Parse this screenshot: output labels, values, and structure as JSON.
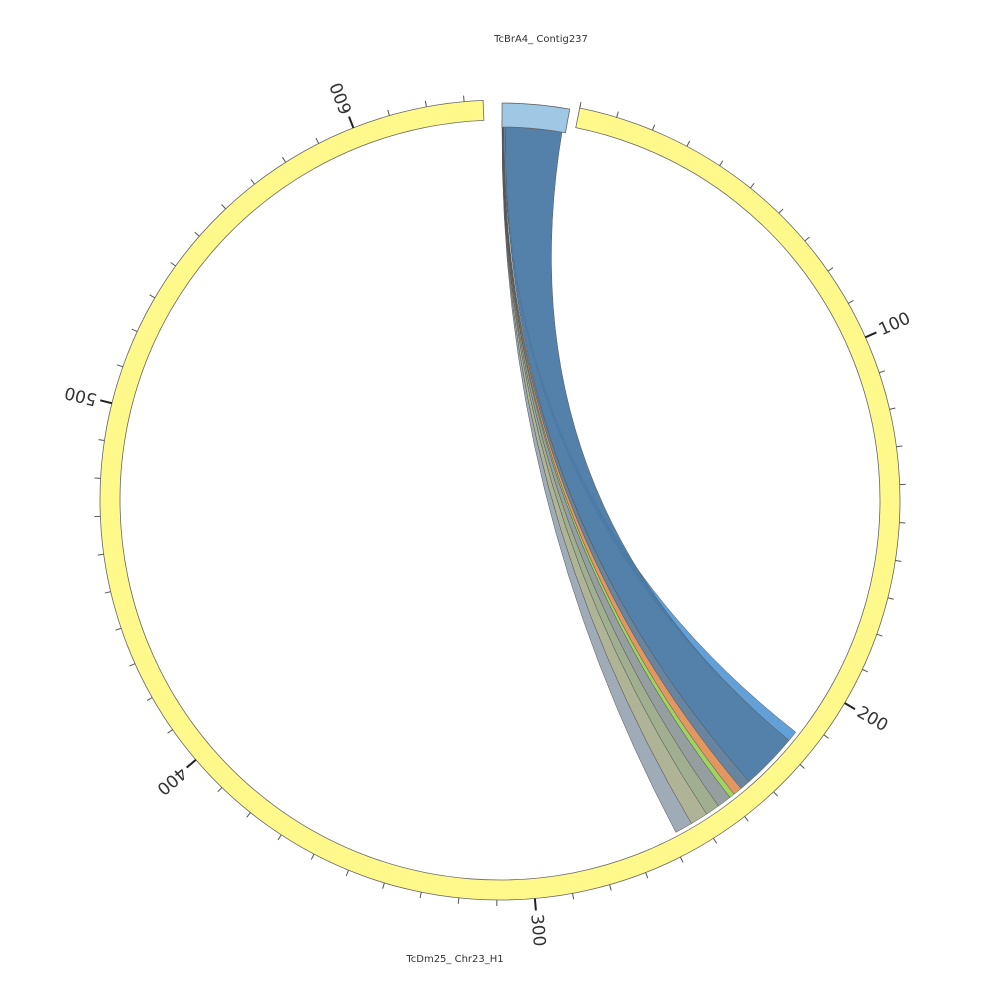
{
  "segments": [
    {
      "name": "TcBrA4_ Contig237",
      "start": 0,
      "end": 18,
      "color": "#9ec8e4"
    },
    {
      "name": "TcDm25_ Chr23_H1",
      "start": 0,
      "end": 635,
      "color": "#fff88a"
    }
  ],
  "major_ticks": [
    100,
    200,
    300,
    400,
    500,
    600
  ],
  "minor_ticks": [
    0,
    10,
    20,
    30,
    40,
    50,
    60,
    70,
    80,
    90,
    110,
    120,
    130,
    140,
    150,
    160,
    170,
    180,
    190,
    210,
    220,
    230,
    240,
    250,
    260,
    270,
    280,
    290,
    310,
    320,
    330,
    340,
    350,
    360,
    370,
    380,
    390,
    410,
    420,
    430,
    440,
    450,
    460,
    470,
    480,
    490,
    510,
    520,
    530,
    540,
    550,
    560,
    570,
    580,
    590,
    610,
    620,
    630
  ],
  "links": [
    {
      "contig": [
        0.6,
        1.0
      ],
      "chr": [
        214,
        217
      ],
      "color": "#5b9bd5"
    },
    {
      "contig": [
        1.0,
        17.0
      ],
      "chr": [
        217,
        233
      ],
      "color": "#4a7aa5"
    },
    {
      "contig": [
        0.45,
        0.6
      ],
      "chr": [
        233,
        236
      ],
      "color": "#5f7e9c"
    },
    {
      "contig": [
        0.35,
        0.45
      ],
      "chr": [
        236,
        238.5
      ],
      "color": "#e0915a"
    },
    {
      "contig": [
        0.28,
        0.35
      ],
      "chr": [
        238.5,
        240
      ],
      "color": "#9bd15a"
    },
    {
      "contig": [
        0.2,
        0.28
      ],
      "chr": [
        240,
        244
      ],
      "color": "#8f9a9a"
    },
    {
      "contig": [
        0.14,
        0.2
      ],
      "chr": [
        244,
        248
      ],
      "color": "#9aab8a"
    },
    {
      "contig": [
        0.07,
        0.14
      ],
      "chr": [
        248,
        253
      ],
      "color": "#aab08f"
    },
    {
      "contig": [
        0.0,
        0.07
      ],
      "chr": [
        253,
        258
      ],
      "color": "#9aa8b4"
    }
  ]
}
